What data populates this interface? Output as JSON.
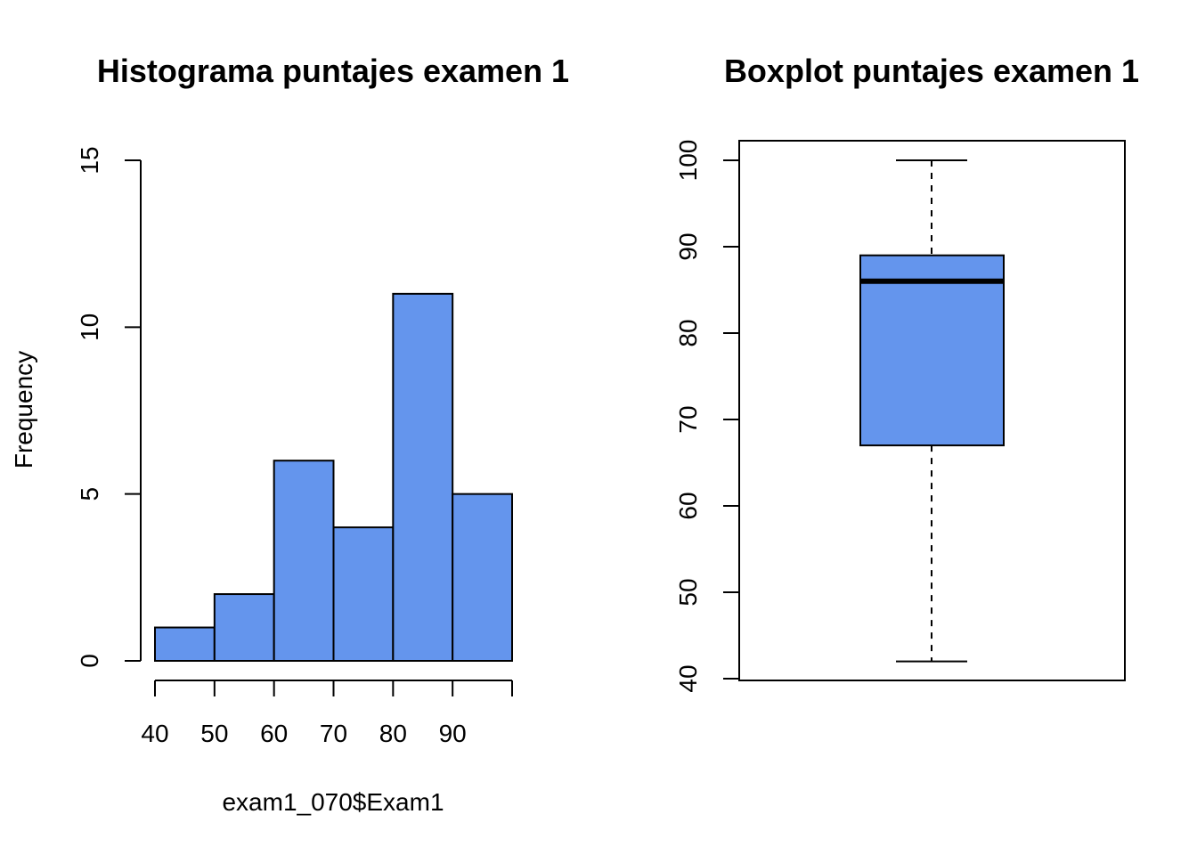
{
  "colors": {
    "fill": "#6495ED",
    "stroke": "#000000",
    "background": "#ffffff"
  },
  "chart_data": [
    {
      "type": "bar",
      "subtype": "histogram",
      "title": "Histograma puntajes examen 1",
      "xlabel": "exam1_070$Exam1",
      "ylabel": "Frequency",
      "bins": [
        {
          "from": 40,
          "to": 50,
          "count": 1
        },
        {
          "from": 50,
          "to": 60,
          "count": 2
        },
        {
          "from": 60,
          "to": 70,
          "count": 6
        },
        {
          "from": 70,
          "to": 80,
          "count": 4
        },
        {
          "from": 80,
          "to": 90,
          "count": 11
        },
        {
          "from": 90,
          "to": 100,
          "count": 5
        }
      ],
      "xlim": [
        40,
        100
      ],
      "ylim": [
        0,
        15
      ],
      "xticks": [
        40,
        50,
        60,
        70,
        80,
        90,
        100
      ],
      "xtick_labels": [
        "40",
        "50",
        "60",
        "70",
        "80",
        "90",
        ""
      ],
      "yticks": [
        0,
        5,
        10,
        15
      ],
      "ytick_labels": [
        "0",
        "5",
        "10",
        "15"
      ],
      "grid": false
    },
    {
      "type": "boxplot",
      "title": "Boxplot puntajes examen 1",
      "stats": {
        "min": 42,
        "q1": 67,
        "median": 86,
        "q3": 89,
        "max": 100
      },
      "ylim": [
        40,
        100
      ],
      "yticks": [
        40,
        50,
        60,
        70,
        80,
        90,
        100
      ],
      "ytick_labels": [
        "40",
        "50",
        "60",
        "70",
        "80",
        "90",
        "100"
      ],
      "grid": false
    }
  ]
}
